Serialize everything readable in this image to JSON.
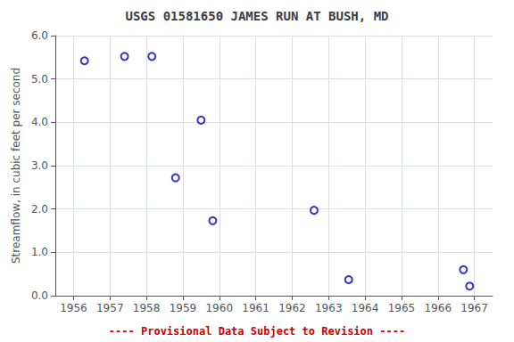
{
  "chart_data": {
    "type": "scatter",
    "title": "USGS 01581650 JAMES RUN AT BUSH, MD",
    "ylabel": "Streamflow, in cubic feet per second",
    "x": [
      1956.3,
      1957.4,
      1958.15,
      1958.8,
      1959.5,
      1959.82,
      1962.6,
      1963.55,
      1966.7,
      1966.87
    ],
    "values": [
      5.42,
      5.52,
      5.52,
      2.72,
      4.05,
      1.73,
      1.97,
      0.37,
      0.6,
      0.22
    ],
    "color": "#0000bb",
    "marker": "open_circle",
    "xlim": [
      1955.5,
      1967.5
    ],
    "ylim": [
      0.0,
      6.0
    ],
    "xticks": [
      1956,
      1957,
      1958,
      1959,
      1960,
      1961,
      1962,
      1963,
      1964,
      1965,
      1966,
      1967
    ],
    "yticks": [
      {
        "value": 0.0,
        "label": "0.0"
      },
      {
        "value": 1.0,
        "label": "1.0"
      },
      {
        "value": 2.0,
        "label": "2.0"
      },
      {
        "value": 3.0,
        "label": "3.0"
      },
      {
        "value": 4.0,
        "label": "4.0"
      },
      {
        "value": 5.0,
        "label": "5.0"
      },
      {
        "value": 6.0,
        "label": "6.0"
      }
    ],
    "grid": true,
    "annotations": [
      {
        "text": "---- Provisional Data Subject to Revision ----",
        "color": "#cc0000"
      }
    ]
  }
}
